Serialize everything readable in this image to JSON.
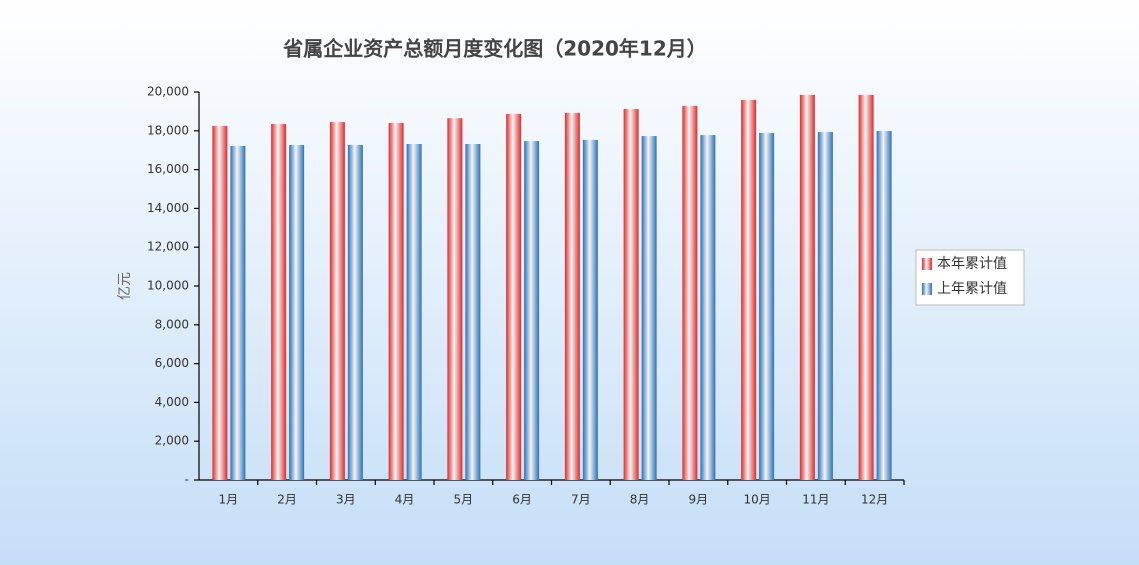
{
  "chart_data": {
    "type": "bar",
    "title": "省属企业资产总额月度变化图（2020年12月）",
    "y_label": "亿元",
    "categories": [
      "1月",
      "2月",
      "3月",
      "4月",
      "5月",
      "6月",
      "7月",
      "8月",
      "9月",
      "10月",
      "11月",
      "12月"
    ],
    "series": [
      {
        "name": "本年累计值",
        "color": "#e02a2a",
        "values": [
          18250,
          18350,
          18450,
          18400,
          18650,
          18870,
          18920,
          19120,
          19280,
          19590,
          19850,
          19850
        ]
      },
      {
        "name": "上年累计值",
        "color": "#2a72b8",
        "values": [
          17220,
          17270,
          17270,
          17320,
          17320,
          17470,
          17530,
          17730,
          17780,
          17890,
          17940,
          17990
        ]
      }
    ],
    "ylim": [
      0,
      20000
    ],
    "yticks": [
      {
        "value": 0,
        "label": "-"
      },
      {
        "value": 2000,
        "label": "2,000"
      },
      {
        "value": 4000,
        "label": "4,000"
      },
      {
        "value": 6000,
        "label": "6,000"
      },
      {
        "value": 8000,
        "label": "8,000"
      },
      {
        "value": 10000,
        "label": "10,000"
      },
      {
        "value": 12000,
        "label": "12,000"
      },
      {
        "value": 14000,
        "label": "14,000"
      },
      {
        "value": 16000,
        "label": "16,000"
      },
      {
        "value": 18000,
        "label": "18,000"
      },
      {
        "value": 20000,
        "label": "20,000"
      }
    ],
    "legend": "right",
    "grid": false
  }
}
